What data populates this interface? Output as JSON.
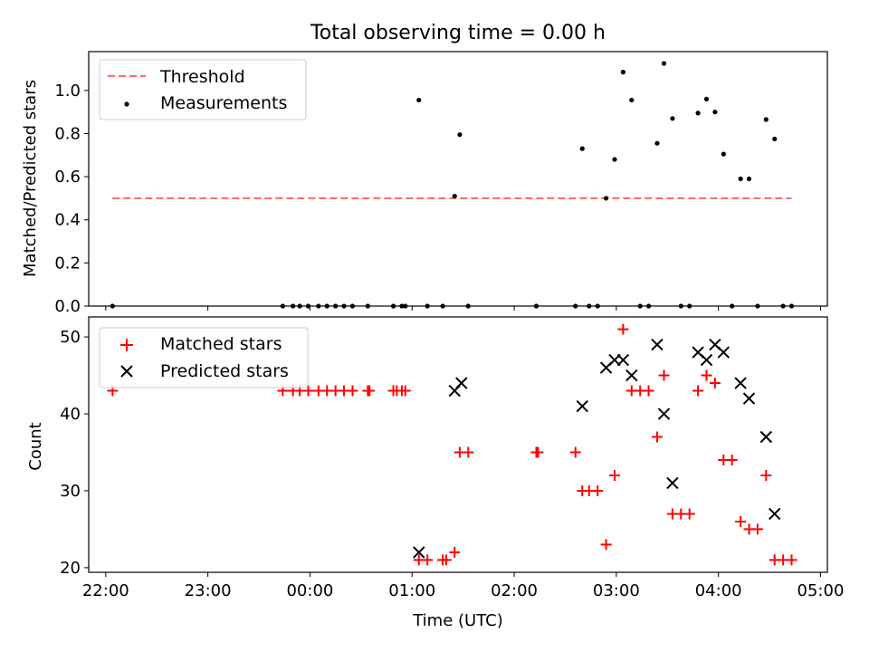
{
  "title": "Total observing time = 0.00 h",
  "chart_data": [
    {
      "type": "scatter",
      "panel": "top",
      "ylabel": "Matched/Predicted stars",
      "ylim": [
        0,
        1.18
      ],
      "yticks": [
        "0.0",
        "0.2",
        "0.4",
        "0.6",
        "0.8",
        "1.0"
      ],
      "legend": {
        "position": "top-left",
        "entries": [
          "Threshold",
          "Measurements"
        ]
      },
      "threshold": {
        "name": "Threshold",
        "value": 0.5,
        "x_start": "22:04",
        "x_end": "04:43",
        "color": "#ff6f6f",
        "style": "dashed"
      },
      "series": [
        {
          "name": "Measurements",
          "color": "#000000",
          "points": [
            [
              "22:04",
              0
            ],
            [
              "23:44",
              0
            ],
            [
              "23:50",
              0
            ],
            [
              "23:54",
              0
            ],
            [
              "23:59",
              0
            ],
            [
              "00:05",
              0
            ],
            [
              "00:10",
              0
            ],
            [
              "00:15",
              0
            ],
            [
              "00:20",
              0
            ],
            [
              "00:25",
              0
            ],
            [
              "00:34",
              0
            ],
            [
              "00:49",
              0
            ],
            [
              "00:54",
              0
            ],
            [
              "00:56",
              0
            ],
            [
              "01:04",
              0.955
            ],
            [
              "01:09",
              0
            ],
            [
              "01:18",
              0
            ],
            [
              "01:25",
              0.51
            ],
            [
              "01:28",
              0.795
            ],
            [
              "01:33",
              0
            ],
            [
              "02:13",
              0
            ],
            [
              "02:36",
              0
            ],
            [
              "02:40",
              0.73
            ],
            [
              "02:44",
              0
            ],
            [
              "02:49",
              0
            ],
            [
              "02:54",
              0.5
            ],
            [
              "02:59",
              0.68
            ],
            [
              "03:04",
              1.085
            ],
            [
              "03:09",
              0.955
            ],
            [
              "03:14",
              0
            ],
            [
              "03:19",
              0
            ],
            [
              "03:24",
              0.755
            ],
            [
              "03:28",
              1.125
            ],
            [
              "03:33",
              0.87
            ],
            [
              "03:38",
              0
            ],
            [
              "03:43",
              0
            ],
            [
              "03:48",
              0.895
            ],
            [
              "03:53",
              0.96
            ],
            [
              "03:58",
              0.9
            ],
            [
              "04:03",
              0.705
            ],
            [
              "04:08",
              0
            ],
            [
              "04:13",
              0.59
            ],
            [
              "04:18",
              0.59
            ],
            [
              "04:23",
              0
            ],
            [
              "04:28",
              0.865
            ],
            [
              "04:33",
              0.775
            ],
            [
              "04:38",
              0
            ],
            [
              "04:43",
              0
            ]
          ]
        }
      ]
    },
    {
      "type": "scatter",
      "panel": "bottom",
      "xlabel": "Time (UTC)",
      "ylabel": "Count",
      "ylim": [
        19.4,
        52.6
      ],
      "xlim": [
        "21:50",
        "05:04"
      ],
      "xticks": [
        "22:00",
        "23:00",
        "00:00",
        "01:00",
        "02:00",
        "03:00",
        "04:00",
        "05:00"
      ],
      "yticks": [
        "20",
        "30",
        "40",
        "50"
      ],
      "legend": {
        "position": "top-left",
        "entries": [
          "Matched stars",
          "Predicted stars"
        ]
      },
      "series": [
        {
          "name": "Matched stars",
          "marker": "+",
          "color": "#ff0000",
          "points": [
            [
              "22:04",
              43
            ],
            [
              "23:44",
              43
            ],
            [
              "23:50",
              43
            ],
            [
              "23:54",
              43
            ],
            [
              "23:59",
              43
            ],
            [
              "00:05",
              43
            ],
            [
              "00:10",
              43
            ],
            [
              "00:15",
              43
            ],
            [
              "00:20",
              43
            ],
            [
              "00:25",
              43
            ],
            [
              "00:34",
              43
            ],
            [
              "00:35",
              43
            ],
            [
              "00:49",
              43
            ],
            [
              "00:51",
              43
            ],
            [
              "00:54",
              43
            ],
            [
              "00:56",
              43
            ],
            [
              "01:04",
              21
            ],
            [
              "01:09",
              21
            ],
            [
              "01:18",
              21
            ],
            [
              "01:20",
              21
            ],
            [
              "01:25",
              22
            ],
            [
              "01:28",
              35
            ],
            [
              "01:33",
              35
            ],
            [
              "02:13",
              35
            ],
            [
              "02:14",
              35
            ],
            [
              "02:36",
              35
            ],
            [
              "02:40",
              30
            ],
            [
              "02:44",
              30
            ],
            [
              "02:49",
              30
            ],
            [
              "02:54",
              23
            ],
            [
              "02:59",
              32
            ],
            [
              "03:04",
              51
            ],
            [
              "03:09",
              43
            ],
            [
              "03:14",
              43
            ],
            [
              "03:19",
              43
            ],
            [
              "03:24",
              37
            ],
            [
              "03:28",
              45
            ],
            [
              "03:33",
              27
            ],
            [
              "03:38",
              27
            ],
            [
              "03:43",
              27
            ],
            [
              "03:48",
              43
            ],
            [
              "03:53",
              45
            ],
            [
              "03:58",
              44
            ],
            [
              "04:03",
              34
            ],
            [
              "04:08",
              34
            ],
            [
              "04:13",
              26
            ],
            [
              "04:18",
              25
            ],
            [
              "04:23",
              25
            ],
            [
              "04:28",
              32
            ],
            [
              "04:33",
              21
            ],
            [
              "04:38",
              21
            ],
            [
              "04:43",
              21
            ]
          ]
        },
        {
          "name": "Predicted stars",
          "marker": "x",
          "color": "#000000",
          "points": [
            [
              "01:04",
              22
            ],
            [
              "01:25",
              43
            ],
            [
              "01:29",
              44
            ],
            [
              "02:40",
              41
            ],
            [
              "02:54",
              46
            ],
            [
              "02:59",
              47
            ],
            [
              "03:04",
              47
            ],
            [
              "03:09",
              45
            ],
            [
              "03:24",
              49
            ],
            [
              "03:28",
              40
            ],
            [
              "03:33",
              31
            ],
            [
              "03:48",
              48
            ],
            [
              "03:53",
              47
            ],
            [
              "03:58",
              49
            ],
            [
              "04:03",
              48
            ],
            [
              "04:13",
              44
            ],
            [
              "04:18",
              42
            ],
            [
              "04:28",
              37
            ],
            [
              "04:33",
              27
            ]
          ]
        }
      ]
    }
  ]
}
